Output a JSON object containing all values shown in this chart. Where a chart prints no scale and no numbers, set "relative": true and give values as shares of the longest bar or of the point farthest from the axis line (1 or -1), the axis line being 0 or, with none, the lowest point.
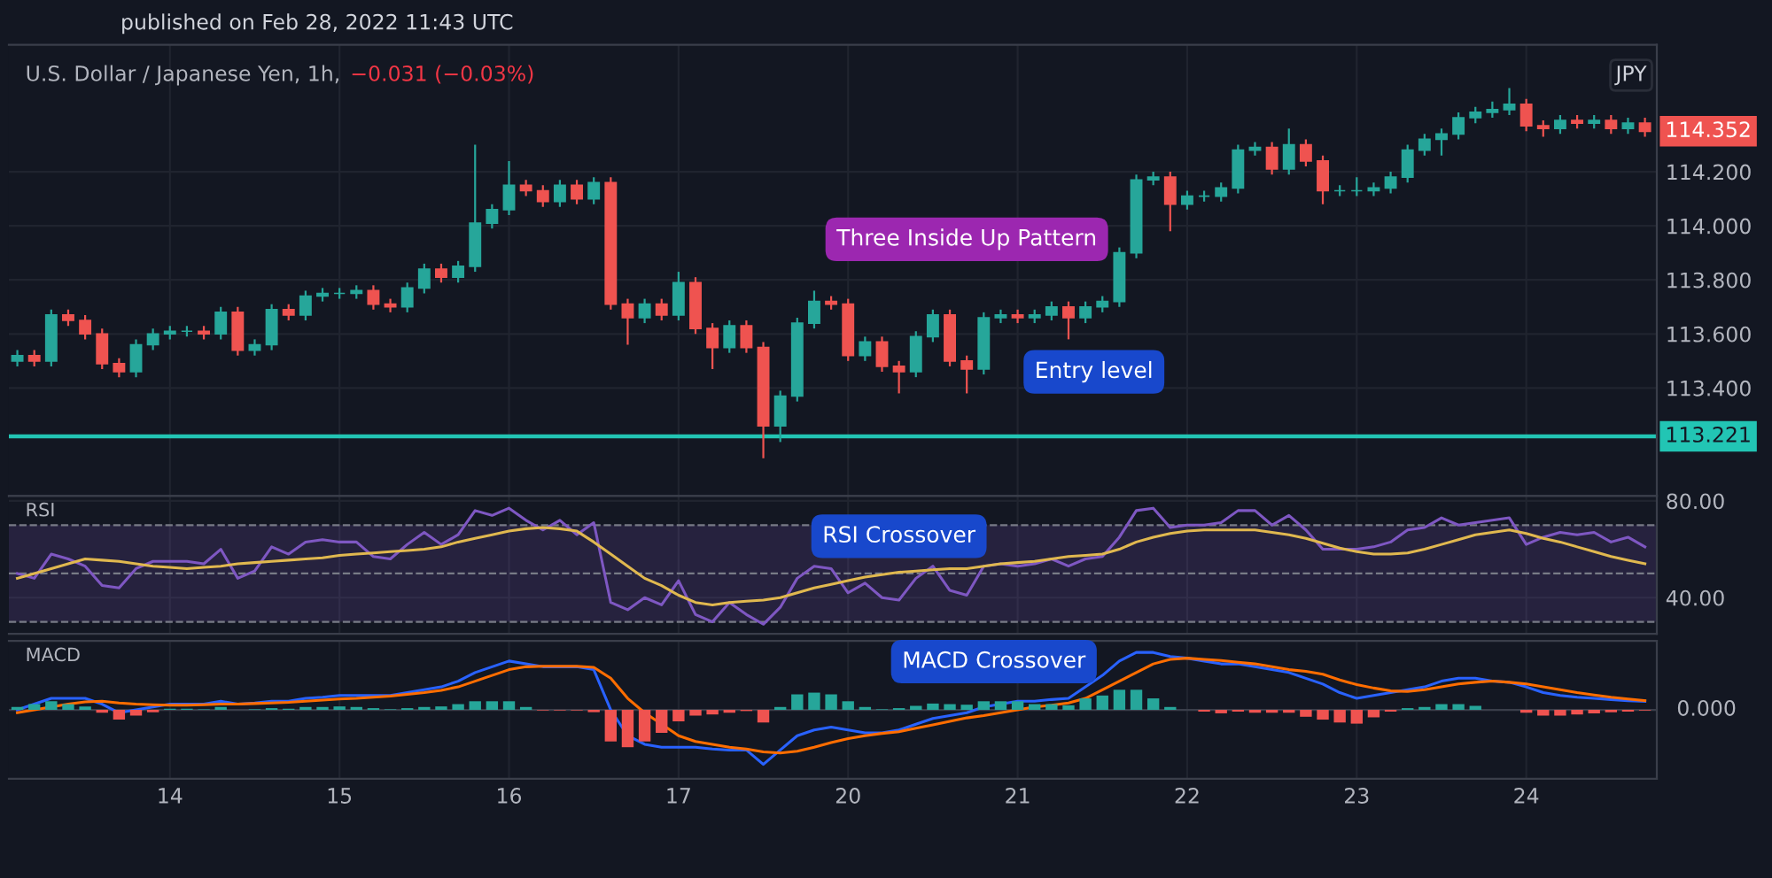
{
  "chart_data": [
    {
      "type": "candlestick",
      "title": "U.S. Dollar / Japanese Yen, 1h,",
      "subtitle": "−0.031 (−0.03%)",
      "categories": [
        null,
        null,
        null,
        null,
        null,
        null,
        null,
        null,
        null,
        "14",
        null,
        null,
        null,
        null,
        null,
        null,
        null,
        null,
        null,
        "15",
        null,
        null,
        null,
        null,
        null,
        null,
        null,
        null,
        null,
        "16",
        null,
        null,
        null,
        null,
        null,
        null,
        null,
        null,
        null,
        "17",
        null,
        null,
        null,
        null,
        null,
        null,
        null,
        null,
        null,
        "20",
        null,
        null,
        null,
        null,
        null,
        null,
        null,
        null,
        null,
        "21",
        null,
        null,
        null,
        null,
        null,
        null,
        null,
        null,
        null,
        "22",
        null,
        null,
        null,
        null,
        null,
        null,
        null,
        null,
        null,
        "23",
        null,
        null,
        null,
        null,
        null,
        null,
        null,
        null,
        null,
        "24",
        null,
        null,
        null,
        null,
        null,
        null,
        null
      ],
      "ohlc": [
        [
          113.5,
          113.54,
          113.48,
          113.52
        ],
        [
          113.52,
          113.54,
          113.48,
          113.5
        ],
        [
          113.5,
          113.69,
          113.48,
          113.67
        ],
        [
          113.67,
          113.69,
          113.63,
          113.65
        ],
        [
          113.65,
          113.67,
          113.58,
          113.6
        ],
        [
          113.6,
          113.62,
          113.47,
          113.49
        ],
        [
          113.49,
          113.51,
          113.44,
          113.46
        ],
        [
          113.46,
          113.58,
          113.44,
          113.56
        ],
        [
          113.56,
          113.62,
          113.54,
          113.6
        ],
        [
          113.6,
          113.63,
          113.58,
          113.61
        ],
        [
          113.61,
          113.63,
          113.59,
          113.61
        ],
        [
          113.61,
          113.63,
          113.58,
          113.6
        ],
        [
          113.6,
          113.7,
          113.58,
          113.68
        ],
        [
          113.68,
          113.7,
          113.52,
          113.54
        ],
        [
          113.54,
          113.58,
          113.52,
          113.56
        ],
        [
          113.56,
          113.71,
          113.54,
          113.69
        ],
        [
          113.69,
          113.71,
          113.65,
          113.67
        ],
        [
          113.67,
          113.76,
          113.65,
          113.74
        ],
        [
          113.74,
          113.77,
          113.72,
          113.75
        ],
        [
          113.75,
          113.77,
          113.73,
          113.75
        ],
        [
          113.75,
          113.78,
          113.73,
          113.76
        ],
        [
          113.76,
          113.78,
          113.69,
          113.71
        ],
        [
          113.71,
          113.73,
          113.68,
          113.7
        ],
        [
          113.7,
          113.79,
          113.68,
          113.77
        ],
        [
          113.77,
          113.86,
          113.75,
          113.84
        ],
        [
          113.84,
          113.86,
          113.79,
          113.81
        ],
        [
          113.81,
          113.87,
          113.79,
          113.85
        ],
        [
          113.85,
          114.3,
          113.83,
          114.01
        ],
        [
          114.01,
          114.08,
          113.99,
          114.06
        ],
        [
          114.06,
          114.24,
          114.04,
          114.15
        ],
        [
          114.15,
          114.17,
          114.11,
          114.13
        ],
        [
          114.13,
          114.15,
          114.07,
          114.09
        ],
        [
          114.09,
          114.17,
          114.07,
          114.15
        ],
        [
          114.15,
          114.17,
          114.08,
          114.1
        ],
        [
          114.1,
          114.18,
          114.08,
          114.16
        ],
        [
          114.16,
          114.18,
          113.69,
          113.71
        ],
        [
          113.71,
          113.73,
          113.56,
          113.66
        ],
        [
          113.66,
          113.73,
          113.64,
          113.71
        ],
        [
          113.71,
          113.73,
          113.65,
          113.67
        ],
        [
          113.67,
          113.83,
          113.65,
          113.79
        ],
        [
          113.79,
          113.81,
          113.6,
          113.62
        ],
        [
          113.62,
          113.64,
          113.47,
          113.55
        ],
        [
          113.55,
          113.65,
          113.53,
          113.63
        ],
        [
          113.63,
          113.65,
          113.53,
          113.55
        ],
        [
          113.55,
          113.57,
          113.14,
          113.26
        ],
        [
          113.26,
          113.39,
          113.2,
          113.37
        ],
        [
          113.37,
          113.66,
          113.35,
          113.64
        ],
        [
          113.64,
          113.76,
          113.62,
          113.72
        ],
        [
          113.72,
          113.74,
          113.69,
          113.71
        ],
        [
          113.71,
          113.73,
          113.5,
          113.52
        ],
        [
          113.52,
          113.59,
          113.5,
          113.57
        ],
        [
          113.57,
          113.59,
          113.46,
          113.48
        ],
        [
          113.48,
          113.5,
          113.38,
          113.46
        ],
        [
          113.46,
          113.61,
          113.44,
          113.59
        ],
        [
          113.59,
          113.69,
          113.57,
          113.67
        ],
        [
          113.67,
          113.69,
          113.48,
          113.5
        ],
        [
          113.5,
          113.52,
          113.38,
          113.47
        ],
        [
          113.47,
          113.68,
          113.45,
          113.66
        ],
        [
          113.66,
          113.69,
          113.64,
          113.67
        ],
        [
          113.67,
          113.69,
          113.64,
          113.66
        ],
        [
          113.66,
          113.69,
          113.64,
          113.67
        ],
        [
          113.67,
          113.72,
          113.65,
          113.7
        ],
        [
          113.7,
          113.72,
          113.58,
          113.66
        ],
        [
          113.66,
          113.72,
          113.64,
          113.7
        ],
        [
          113.7,
          113.74,
          113.68,
          113.72
        ],
        [
          113.72,
          113.92,
          113.7,
          113.9
        ],
        [
          113.9,
          114.19,
          113.88,
          114.17
        ],
        [
          114.17,
          114.2,
          114.15,
          114.18
        ],
        [
          114.18,
          114.2,
          113.98,
          114.08
        ],
        [
          114.08,
          114.13,
          114.06,
          114.11
        ],
        [
          114.11,
          114.13,
          114.09,
          114.11
        ],
        [
          114.11,
          114.16,
          114.09,
          114.14
        ],
        [
          114.14,
          114.3,
          114.12,
          114.28
        ],
        [
          114.28,
          114.31,
          114.26,
          114.29
        ],
        [
          114.29,
          114.31,
          114.19,
          114.21
        ],
        [
          114.21,
          114.36,
          114.19,
          114.3
        ],
        [
          114.3,
          114.32,
          114.22,
          114.24
        ],
        [
          114.24,
          114.26,
          114.08,
          114.13
        ],
        [
          114.13,
          114.15,
          114.11,
          114.13
        ],
        [
          114.13,
          114.18,
          114.11,
          114.13
        ],
        [
          114.13,
          114.16,
          114.11,
          114.14
        ],
        [
          114.14,
          114.2,
          114.12,
          114.18
        ],
        [
          114.18,
          114.3,
          114.16,
          114.28
        ],
        [
          114.28,
          114.34,
          114.26,
          114.32
        ],
        [
          114.32,
          114.36,
          114.26,
          114.34
        ],
        [
          114.34,
          114.42,
          114.32,
          114.4
        ],
        [
          114.4,
          114.44,
          114.38,
          114.42
        ],
        [
          114.42,
          114.46,
          114.4,
          114.43
        ],
        [
          114.43,
          114.51,
          114.41,
          114.45
        ],
        [
          114.45,
          114.47,
          114.35,
          114.37
        ],
        [
          114.37,
          114.39,
          114.33,
          114.36
        ],
        [
          114.36,
          114.41,
          114.34,
          114.39
        ],
        [
          114.39,
          114.41,
          114.36,
          114.38
        ],
        [
          114.38,
          114.41,
          114.36,
          114.39
        ],
        [
          114.39,
          114.41,
          114.34,
          114.36
        ],
        [
          114.36,
          114.4,
          114.34,
          114.38
        ],
        [
          114.38,
          114.4,
          114.33,
          114.35
        ]
      ],
      "colors": [
        "#26a69a",
        "#ef5350",
        "#26a69a",
        "#ef5350",
        "#ef5350",
        "#ef5350",
        "#ef5350",
        "#26a69a",
        "#26a69a",
        "#26a69a",
        "#26a69a",
        "#ef5350",
        "#26a69a",
        "#ef5350",
        "#26a69a",
        "#26a69a",
        "#ef5350",
        "#26a69a",
        "#26a69a",
        "#26a69a",
        "#26a69a",
        "#ef5350",
        "#ef5350",
        "#26a69a",
        "#26a69a",
        "#ef5350",
        "#26a69a",
        "#26a69a",
        "#26a69a",
        "#26a69a",
        "#ef5350",
        "#ef5350",
        "#26a69a",
        "#ef5350",
        "#26a69a",
        "#ef5350",
        "#ef5350",
        "#26a69a",
        "#ef5350",
        "#26a69a",
        "#ef5350",
        "#ef5350",
        "#26a69a",
        "#ef5350",
        "#ef5350",
        "#26a69a",
        "#26a69a",
        "#26a69a",
        "#ef5350",
        "#ef5350",
        "#26a69a",
        "#ef5350",
        "#ef5350",
        "#26a69a",
        "#26a69a",
        "#ef5350",
        "#ef5350",
        "#26a69a",
        "#26a69a",
        "#ef5350",
        "#26a69a",
        "#26a69a",
        "#ef5350",
        "#26a69a",
        "#26a69a",
        "#26a69a",
        "#26a69a",
        "#26a69a",
        "#ef5350",
        "#26a69a",
        "#26a69a",
        "#26a69a",
        "#26a69a",
        "#26a69a",
        "#ef5350",
        "#26a69a",
        "#ef5350",
        "#ef5350",
        "#26a69a",
        "#26a69a",
        "#26a69a",
        "#26a69a",
        "#26a69a",
        "#26a69a",
        "#26a69a",
        "#26a69a",
        "#26a69a",
        "#26a69a",
        "#26a69a",
        "#ef5350",
        "#ef5350",
        "#26a69a",
        "#ef5350",
        "#26a69a",
        "#ef5350",
        "#26a69a",
        "#ef5350"
      ],
      "ylim": [
        113.0,
        114.67
      ],
      "yticks": [
        {
          "value": 113.4,
          "label": "113.400"
        },
        {
          "value": 113.6,
          "label": "113.600"
        },
        {
          "value": 113.8,
          "label": "113.800"
        },
        {
          "value": 114.0,
          "label": "114.000"
        },
        {
          "value": 114.2,
          "label": "114.200"
        }
      ],
      "ref_lines": [
        {
          "axis": "y",
          "value": 113.221,
          "label": "113.221",
          "color": "#22c5b4"
        }
      ],
      "annotations": [
        "published on Feb 28, 2022 11:43 UTC",
        "JPY",
        "Three Inside Up Pattern",
        "Entry level",
        "114.352"
      ],
      "grid": true,
      "tick_labels": "y"
    },
    {
      "type": "line",
      "title": "RSI",
      "categories": [
        null,
        null,
        null,
        null,
        null,
        null,
        null,
        null,
        null,
        "14",
        null,
        null,
        null,
        null,
        null,
        null,
        null,
        null,
        null,
        "15",
        null,
        null,
        null,
        null,
        null,
        null,
        null,
        null,
        null,
        "16",
        null,
        null,
        null,
        null,
        null,
        null,
        null,
        null,
        null,
        "17",
        null,
        null,
        null,
        null,
        null,
        null,
        null,
        null,
        null,
        "20",
        null,
        null,
        null,
        null,
        null,
        null,
        null,
        null,
        null,
        "21",
        null,
        null,
        null,
        null,
        null,
        null,
        null,
        null,
        null,
        "22",
        null,
        null,
        null,
        null,
        null,
        null,
        null,
        null,
        null,
        "23",
        null,
        null,
        null,
        null,
        null,
        null,
        null,
        null,
        null,
        "24",
        null,
        null,
        null,
        null,
        null,
        null,
        null
      ],
      "series": [
        {
          "color": "#7e57c2",
          "values": [
            50,
            48,
            58,
            56,
            53,
            45,
            44,
            52,
            55,
            55,
            55,
            54,
            60,
            48,
            51,
            61,
            58,
            63,
            64,
            63,
            63,
            57,
            56,
            62,
            67,
            62,
            66,
            76,
            74,
            77,
            72,
            68,
            72,
            66,
            71,
            38,
            35,
            40,
            37,
            47,
            33,
            30,
            38,
            33,
            29,
            36,
            48,
            53,
            52,
            42,
            46,
            40,
            39,
            48,
            53,
            43,
            41,
            53,
            54,
            53,
            54,
            56,
            53,
            56,
            57,
            65,
            76,
            77,
            69,
            70,
            70,
            71,
            76,
            76,
            70,
            74,
            68,
            60,
            60,
            60,
            61,
            63,
            68,
            69,
            73,
            70,
            71,
            72,
            73,
            62,
            65,
            67,
            66,
            67,
            63,
            65,
            61
          ]
        },
        {
          "color": "#e0b84f",
          "values": [
            48,
            50,
            52,
            54,
            56,
            55.5,
            55,
            54,
            53,
            52.5,
            52,
            52.5,
            53,
            54,
            54.5,
            55,
            55.5,
            56,
            56.5,
            57.5,
            58,
            58.5,
            59,
            59.5,
            60,
            61,
            63,
            64.5,
            66,
            67.5,
            68.5,
            69,
            68.5,
            67.5,
            63,
            58,
            53,
            48,
            45,
            41,
            38,
            37,
            38,
            38.5,
            39,
            40,
            42,
            44,
            45.5,
            47,
            48.5,
            49.5,
            50.5,
            51,
            51.5,
            52,
            52,
            53,
            54,
            54.5,
            55,
            56,
            57,
            57.5,
            58,
            60,
            63,
            65,
            66.5,
            67.5,
            68,
            68,
            68,
            68,
            67,
            66,
            64.5,
            62.5,
            60.5,
            59,
            58,
            58,
            58.5,
            60,
            62,
            64,
            66,
            67,
            68,
            66.5,
            64.5,
            63,
            61,
            59,
            57,
            55.5,
            54
          ]
        }
      ],
      "ylim": [
        25,
        82
      ],
      "yticks": [
        {
          "value": 40,
          "label": "40.00"
        },
        {
          "value": 80,
          "label": "80.00"
        }
      ],
      "bands": [
        {
          "axis": "y",
          "from": 30,
          "to": 70,
          "color": "#7e57c2"
        }
      ],
      "ref_lines": [
        {
          "axis": "y",
          "value": 70,
          "line_style": "dashed",
          "color": "#787b86"
        },
        {
          "axis": "y",
          "value": 50,
          "line_style": "dashed",
          "color": "#787b86"
        },
        {
          "axis": "y",
          "value": 30,
          "line_style": "dashed",
          "color": "#787b86"
        }
      ],
      "annotations": [
        "RSI Crossover"
      ],
      "grid": true,
      "tick_labels": "y"
    },
    {
      "type": "line",
      "title": "MACD",
      "relative": true,
      "categories": [
        null,
        null,
        null,
        null,
        null,
        null,
        null,
        null,
        null,
        "14",
        null,
        null,
        null,
        null,
        null,
        null,
        null,
        null,
        null,
        "15",
        null,
        null,
        null,
        null,
        null,
        null,
        null,
        null,
        null,
        "16",
        null,
        null,
        null,
        null,
        null,
        null,
        null,
        null,
        null,
        "17",
        null,
        null,
        null,
        null,
        null,
        null,
        null,
        null,
        null,
        "20",
        null,
        null,
        null,
        null,
        null,
        null,
        null,
        null,
        null,
        "21",
        null,
        null,
        null,
        null,
        null,
        null,
        null,
        null,
        null,
        "22",
        null,
        null,
        null,
        null,
        null,
        null,
        null,
        null,
        null,
        "23",
        null,
        null,
        null,
        null,
        null,
        null,
        null,
        null,
        null,
        "24",
        null,
        null,
        null,
        null,
        null,
        null,
        null
      ],
      "series": [
        {
          "type": "bar",
          "values": [
            0.05,
            0.1,
            0.15,
            0.1,
            0.06,
            -0.05,
            -0.17,
            -0.1,
            -0.04,
            0.02,
            0.02,
            0.01,
            0.05,
            0,
            0.01,
            0.03,
            0.02,
            0.05,
            0.05,
            0.06,
            0.05,
            0.03,
            0.01,
            0.03,
            0.05,
            0.06,
            0.1,
            0.15,
            0.15,
            0.15,
            0.05,
            -0.01,
            -0.01,
            -0.01,
            -0.04,
            -0.55,
            -0.65,
            -0.55,
            -0.4,
            -0.2,
            -0.1,
            -0.08,
            -0.05,
            -0.02,
            -0.22,
            0.05,
            0.27,
            0.3,
            0.27,
            0.15,
            0.05,
            0.01,
            0.03,
            0.07,
            0.11,
            0.1,
            0.09,
            0.15,
            0.15,
            0.15,
            0.1,
            0.1,
            0.08,
            0.2,
            0.25,
            0.35,
            0.35,
            0.2,
            0.05,
            0,
            -0.03,
            -0.06,
            -0.03,
            -0.05,
            -0.05,
            -0.05,
            -0.12,
            -0.17,
            -0.22,
            -0.24,
            -0.13,
            -0.03,
            0.03,
            0.05,
            0.1,
            0.1,
            0.07,
            0,
            0,
            -0.05,
            -0.1,
            -0.1,
            -0.08,
            -0.06,
            -0.04,
            -0.03,
            -0.01
          ],
          "colors": [
            "#26a69a",
            "#26a69a",
            "#26a69a",
            "#26a69a",
            "#26a69a",
            "#ef5350",
            "#ef5350",
            "#ef5350",
            "#ef5350",
            "#26a69a",
            "#26a69a",
            "#26a69a",
            "#26a69a",
            "#26a69a",
            "#26a69a",
            "#26a69a",
            "#26a69a",
            "#26a69a",
            "#26a69a",
            "#26a69a",
            "#26a69a",
            "#26a69a",
            "#26a69a",
            "#26a69a",
            "#26a69a",
            "#26a69a",
            "#26a69a",
            "#26a69a",
            "#26a69a",
            "#26a69a",
            "#26a69a",
            "#ef5350",
            "#ef5350",
            "#ef5350",
            "#ef5350",
            "#ef5350",
            "#ef5350",
            "#ef5350",
            "#ef5350",
            "#ef5350",
            "#ef5350",
            "#ef5350",
            "#ef5350",
            "#ef5350",
            "#ef5350",
            "#26a69a",
            "#26a69a",
            "#26a69a",
            "#26a69a",
            "#26a69a",
            "#26a69a",
            "#26a69a",
            "#26a69a",
            "#26a69a",
            "#26a69a",
            "#26a69a",
            "#26a69a",
            "#26a69a",
            "#26a69a",
            "#26a69a",
            "#26a69a",
            "#26a69a",
            "#26a69a",
            "#26a69a",
            "#26a69a",
            "#26a69a",
            "#26a69a",
            "#26a69a",
            "#26a69a",
            "#26a69a",
            "#ef5350",
            "#ef5350",
            "#ef5350",
            "#ef5350",
            "#ef5350",
            "#ef5350",
            "#ef5350",
            "#ef5350",
            "#ef5350",
            "#ef5350",
            "#ef5350",
            "#ef5350",
            "#26a69a",
            "#26a69a",
            "#26a69a",
            "#26a69a",
            "#26a69a",
            "#26a69a",
            "#26a69a",
            "#ef5350",
            "#ef5350",
            "#ef5350",
            "#ef5350",
            "#ef5350",
            "#ef5350",
            "#ef5350",
            "#ef5350"
          ]
        },
        {
          "color": "#2962ff",
          "values": [
            0.0,
            0.1,
            0.2,
            0.2,
            0.2,
            0.1,
            -0.05,
            0.0,
            0.05,
            0.1,
            0.1,
            0.1,
            0.15,
            0.1,
            0.12,
            0.15,
            0.15,
            0.2,
            0.22,
            0.25,
            0.25,
            0.25,
            0.25,
            0.3,
            0.35,
            0.4,
            0.5,
            0.65,
            0.75,
            0.85,
            0.8,
            0.75,
            0.75,
            0.75,
            0.7,
            0.0,
            -0.45,
            -0.6,
            -0.65,
            -0.65,
            -0.65,
            -0.68,
            -0.7,
            -0.7,
            -0.95,
            -0.7,
            -0.45,
            -0.35,
            -0.3,
            -0.35,
            -0.4,
            -0.4,
            -0.35,
            -0.25,
            -0.15,
            -0.1,
            -0.05,
            0.05,
            0.1,
            0.15,
            0.15,
            0.18,
            0.2,
            0.4,
            0.6,
            0.85,
            1.0,
            1.0,
            0.93,
            0.9,
            0.85,
            0.8,
            0.8,
            0.75,
            0.7,
            0.65,
            0.55,
            0.45,
            0.3,
            0.2,
            0.25,
            0.3,
            0.35,
            0.4,
            0.5,
            0.55,
            0.55,
            0.5,
            0.48,
            0.4,
            0.3,
            0.25,
            0.22,
            0.2,
            0.18,
            0.16,
            0.15
          ]
        },
        {
          "color": "#ff6d00",
          "values": [
            -0.05,
            0.0,
            0.05,
            0.1,
            0.14,
            0.15,
            0.12,
            0.1,
            0.09,
            0.08,
            0.08,
            0.09,
            0.1,
            0.1,
            0.11,
            0.12,
            0.13,
            0.15,
            0.17,
            0.19,
            0.2,
            0.22,
            0.24,
            0.27,
            0.3,
            0.34,
            0.4,
            0.5,
            0.6,
            0.7,
            0.75,
            0.76,
            0.76,
            0.76,
            0.74,
            0.55,
            0.2,
            -0.05,
            -0.25,
            -0.45,
            -0.55,
            -0.6,
            -0.65,
            -0.68,
            -0.73,
            -0.75,
            -0.72,
            -0.65,
            -0.57,
            -0.5,
            -0.45,
            -0.41,
            -0.38,
            -0.32,
            -0.26,
            -0.2,
            -0.14,
            -0.1,
            -0.05,
            0.0,
            0.05,
            0.08,
            0.12,
            0.2,
            0.35,
            0.5,
            0.65,
            0.8,
            0.88,
            0.9,
            0.88,
            0.86,
            0.83,
            0.8,
            0.75,
            0.7,
            0.67,
            0.62,
            0.52,
            0.44,
            0.38,
            0.33,
            0.32,
            0.35,
            0.4,
            0.45,
            0.48,
            0.5,
            0.48,
            0.45,
            0.4,
            0.35,
            0.3,
            0.26,
            0.22,
            0.19,
            0.16
          ]
        }
      ],
      "annotations": [
        "0.000",
        "MACD Crossover"
      ],
      "grid": "x"
    }
  ]
}
